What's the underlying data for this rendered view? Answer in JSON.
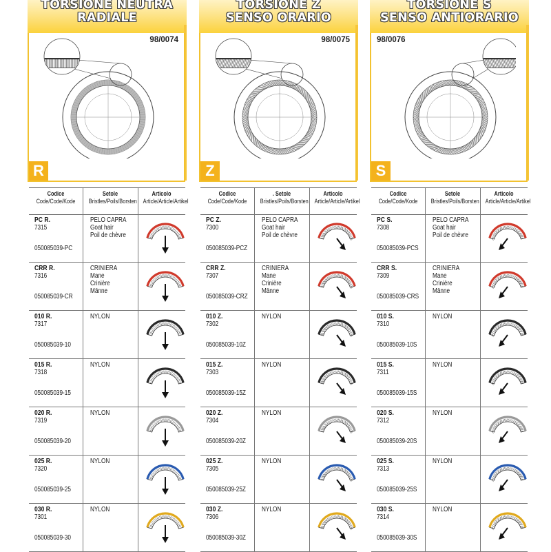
{
  "columns": [
    {
      "title_lines": [
        "TORSIONE NEUTRA",
        "RADIALE"
      ],
      "ref": "98/0074",
      "letter": "R",
      "twist": "neutral",
      "headers": {
        "code": {
          "title": "Codice",
          "sub": "Code/Code/Kode"
        },
        "bristles": {
          "title": "Setole",
          "sub": "Bristles/Poils/Borsten"
        },
        "article": {
          "title": "Articolo",
          "sub": "Article/Article/Artikel"
        }
      },
      "rows": [
        {
          "name": "PC R.",
          "num": "7315",
          "code": "050085039-PC",
          "bristles": [
            "PELO CAPRA",
            "Goat hair",
            "Poil de chèvre"
          ],
          "color": "#d03a2c"
        },
        {
          "name": "CRR R.",
          "num": "7316",
          "code": "050085039-CR",
          "bristles": [
            "CRINIERA",
            "Mane",
            "Crinière",
            "Männe"
          ],
          "color": "#d03a2c"
        },
        {
          "name": "010 R.",
          "num": "7317",
          "code": "050085039-10",
          "bristles": [
            "NYLON"
          ],
          "color": "#2a2a2a"
        },
        {
          "name": "015 R.",
          "num": "7318",
          "code": "050085039-15",
          "bristles": [
            "NYLON"
          ],
          "color": "#2a2a2a"
        },
        {
          "name": "020 R.",
          "num": "7319",
          "code": "050085039-20",
          "bristles": [
            "NYLON"
          ],
          "color": "#9a9a9a"
        },
        {
          "name": "025 R.",
          "num": "7320",
          "code": "050085039-25",
          "bristles": [
            "NYLON"
          ],
          "color": "#2a5bb0"
        },
        {
          "name": "030 R.",
          "num": "7301",
          "code": "050085039-30",
          "bristles": [
            "NYLON"
          ],
          "color": "#e0a91e"
        }
      ]
    },
    {
      "title_lines": [
        "TORSIONE Z",
        "SENSO ORARIO"
      ],
      "ref": "98/0075",
      "letter": "Z",
      "twist": "z",
      "headers": {
        "code": {
          "title": "Codice",
          "sub": "Code/Code/Kode"
        },
        "bristles": {
          "title": ". Setole",
          "sub": "Bristles/Poils/Borsten"
        },
        "article": {
          "title": "Articolo",
          "sub": "Article/Article/Artikel"
        }
      },
      "rows": [
        {
          "name": "PC Z.",
          "num": "7300",
          "code": "050085039-PCZ",
          "bristles": [
            "PELO CAPRA",
            "Goat hair",
            "Poil de chèvre"
          ],
          "color": "#d03a2c"
        },
        {
          "name": "CRR Z.",
          "num": "7307",
          "code": "050085039-CRZ",
          "bristles": [
            "CRINIERA",
            "Mane",
            "Crinière",
            "Männe"
          ],
          "color": "#d03a2c"
        },
        {
          "name": "010 Z.",
          "num": "7302",
          "code": "050085039-10Z",
          "bristles": [
            "NYLON"
          ],
          "color": "#2a2a2a"
        },
        {
          "name": "015 Z.",
          "num": "7303",
          "code": "050085039-15Z",
          "bristles": [
            "NYLON"
          ],
          "color": "#2a2a2a"
        },
        {
          "name": "020 Z.",
          "num": "7304",
          "code": "050085039-20Z",
          "bristles": [
            "NYLON"
          ],
          "color": "#9a9a9a"
        },
        {
          "name": "025 Z.",
          "num": "7305",
          "code": "050085039-25Z",
          "bristles": [
            "NYLON"
          ],
          "color": "#2a5bb0"
        },
        {
          "name": "030 Z.",
          "num": "7306",
          "code": "050085039-30Z",
          "bristles": [
            "NYLON"
          ],
          "color": "#e0a91e"
        }
      ]
    },
    {
      "title_lines": [
        "TORSIONE S",
        "SENSO ANTIORARIO"
      ],
      "ref": "98/0076",
      "letter": "S",
      "twist": "s",
      "headers": {
        "code": {
          "title": "Codice",
          "sub": "Code/Code/Kode"
        },
        "bristles": {
          "title": "Setole",
          "sub": "Bristles/Poils/Borsten"
        },
        "article": {
          "title": "Articolo",
          "sub": "Article/Article/Artikel"
        }
      },
      "rows": [
        {
          "name": "PC S.",
          "num": "7308",
          "code": "050085039-PCS",
          "bristles": [
            "PELO CAPRA",
            "Goat hair",
            "Poil de chèvre"
          ],
          "color": "#d03a2c"
        },
        {
          "name": "CRR S.",
          "num": "7309",
          "code": "050085039-CRS",
          "bristles": [
            "CRINIERA",
            "Mane",
            "Crinière",
            "Männe"
          ],
          "color": "#d03a2c"
        },
        {
          "name": "010 S.",
          "num": "7310",
          "code": "050085039-10S",
          "bristles": [
            "NYLON"
          ],
          "color": "#2a2a2a"
        },
        {
          "name": "015 S.",
          "num": "7311",
          "code": "050085039-15S",
          "bristles": [
            "NYLON"
          ],
          "color": "#2a2a2a"
        },
        {
          "name": "020 S.",
          "num": "7312",
          "code": "050085039-20S",
          "bristles": [
            "NYLON"
          ],
          "color": "#9a9a9a"
        },
        {
          "name": "025 S.",
          "num": "7313",
          "code": "050085039-25S",
          "bristles": [
            "NYLON"
          ],
          "color": "#2a5bb0"
        },
        {
          "name": "030 S.",
          "num": "7314",
          "code": "050085039-30S",
          "bristles": [
            "NYLON"
          ],
          "color": "#e0a91e"
        }
      ]
    }
  ]
}
